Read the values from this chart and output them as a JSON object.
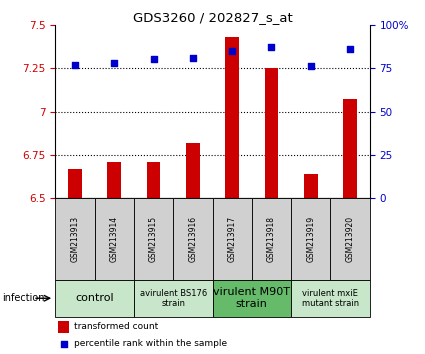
{
  "title": "GDS3260 / 202827_s_at",
  "samples": [
    "GSM213913",
    "GSM213914",
    "GSM213915",
    "GSM213916",
    "GSM213917",
    "GSM213918",
    "GSM213919",
    "GSM213920"
  ],
  "transformed_counts": [
    6.67,
    6.71,
    6.71,
    6.82,
    7.43,
    7.25,
    6.64,
    7.07
  ],
  "percentile_ranks": [
    77,
    78,
    80,
    81,
    85,
    87,
    76,
    86
  ],
  "ylim_left": [
    6.5,
    7.5
  ],
  "ylim_right": [
    0,
    100
  ],
  "yticks_left": [
    6.5,
    6.75,
    7.0,
    7.25,
    7.5
  ],
  "yticks_right": [
    0,
    25,
    50,
    75,
    100
  ],
  "ytick_labels_left": [
    "6.5",
    "6.75",
    "7",
    "7.25",
    "7.5"
  ],
  "ytick_labels_right": [
    "0",
    "25",
    "50",
    "75",
    "100%"
  ],
  "hlines": [
    6.75,
    7.0,
    7.25
  ],
  "bar_color": "#cc0000",
  "dot_color": "#0000cc",
  "left_tick_color": "#cc0000",
  "right_tick_color": "#0000cc",
  "groups": [
    {
      "label": "control",
      "label_size": 8,
      "span": [
        0,
        1
      ],
      "color": "#c8e6c9"
    },
    {
      "label": "avirulent BS176\nstrain",
      "label_size": 6,
      "span": [
        2,
        3
      ],
      "color": "#c8e6c9"
    },
    {
      "label": "virulent M90T\nstrain",
      "label_size": 8,
      "span": [
        4,
        5
      ],
      "color": "#66bb6a"
    },
    {
      "label": "virulent mxiE\nmutant strain",
      "label_size": 6,
      "span": [
        6,
        7
      ],
      "color": "#c8e6c9"
    }
  ],
  "infection_label": "infection",
  "legend_bar_label": "transformed count",
  "legend_dot_label": "percentile rank within the sample",
  "sample_box_color": "#d0d0d0",
  "fig_bg_color": "#ffffff",
  "bar_width": 0.35
}
